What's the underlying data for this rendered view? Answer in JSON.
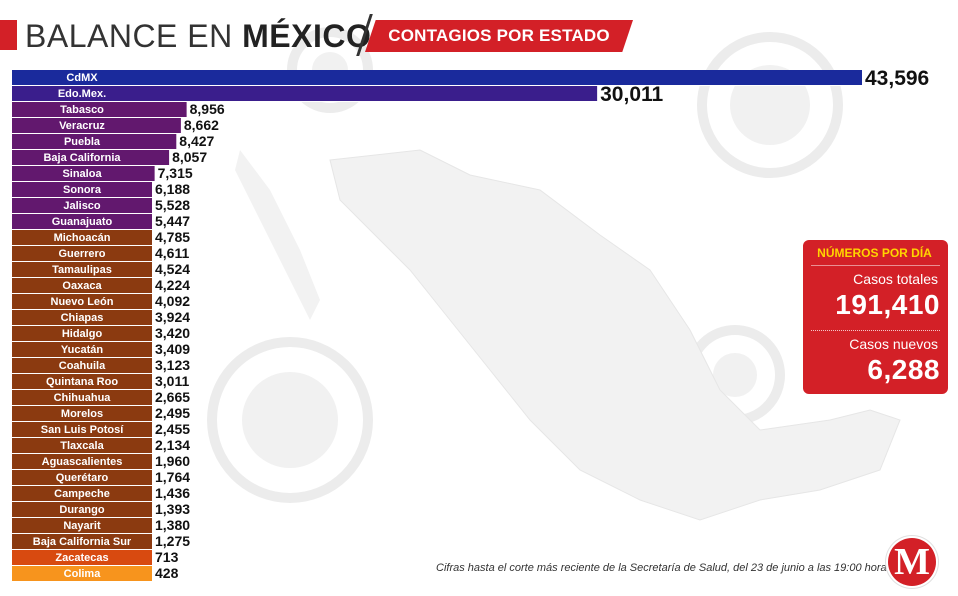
{
  "header": {
    "title_light": "BALANCE EN ",
    "title_bold": "MÉXICO",
    "subtitle": "CONTAGIOS POR ESTADO"
  },
  "chart_data": {
    "type": "bar",
    "orientation": "horizontal",
    "categories": [
      "CdMX",
      "Edo.Mex.",
      "Tabasco",
      "Veracruz",
      "Puebla",
      "Baja California",
      "Sinaloa",
      "Sonora",
      "Jalisco",
      "Guanajuato",
      "Michoacán",
      "Guerrero",
      "Tamaulipas",
      "Oaxaca",
      "Nuevo León",
      "Chiapas",
      "Hidalgo",
      "Yucatán",
      "Coahuila",
      "Quintana Roo",
      "Chihuahua",
      "Morelos",
      "San Luis Potosí",
      "Tlaxcala",
      "Aguascalientes",
      "Querétaro",
      "Campeche",
      "Durango",
      "Nayarit",
      "Baja California Sur",
      "Zacatecas",
      "Colima"
    ],
    "values": [
      43596,
      30011,
      8956,
      8662,
      8427,
      8057,
      7315,
      6188,
      5528,
      5447,
      4785,
      4611,
      4524,
      4224,
      4092,
      3924,
      3420,
      3409,
      3123,
      3011,
      2665,
      2495,
      2455,
      2134,
      1960,
      1764,
      1436,
      1393,
      1380,
      1275,
      713,
      428
    ],
    "value_labels": [
      "43,596",
      "30,011",
      "8,956",
      "8,662",
      "8,427",
      "8,057",
      "7,315",
      "6,188",
      "5,528",
      "5,447",
      "4,785",
      "4,611",
      "4,524",
      "4,224",
      "4,092",
      "3,924",
      "3,420",
      "3,409",
      "3,123",
      "3,011",
      "2,665",
      "2,495",
      "2,455",
      "2,134",
      "1,960",
      "1,764",
      "1,436",
      "1,393",
      "1,380",
      "1,275",
      "713",
      "428"
    ],
    "colors": [
      "#1a2a9c",
      "#3a1e8c",
      "#62186e",
      "#62186e",
      "#62186e",
      "#62186e",
      "#62186e",
      "#62186e",
      "#62186e",
      "#62186e",
      "#8b3a10",
      "#8b3a10",
      "#8b3a10",
      "#8b3a10",
      "#8b3a10",
      "#8b3a10",
      "#8b3a10",
      "#8b3a10",
      "#8b3a10",
      "#8b3a10",
      "#8b3a10",
      "#8b3a10",
      "#8b3a10",
      "#8b3a10",
      "#8b3a10",
      "#8b3a10",
      "#8b3a10",
      "#8b3a10",
      "#8b3a10",
      "#8b3a10",
      "#d84a10",
      "#f7941d"
    ],
    "xlim": [
      0,
      43596
    ]
  },
  "daily": {
    "heading": "NÚMEROS POR DÍA",
    "total_label": "Casos totales",
    "total_value": "191,410",
    "new_label": "Casos nuevos",
    "new_value": "6,288"
  },
  "footnote": "Cifras hasta el corte más reciente de la Secretaría de Salud, del 23 de junio a las 19:00 horas.",
  "logo_letter": "M"
}
